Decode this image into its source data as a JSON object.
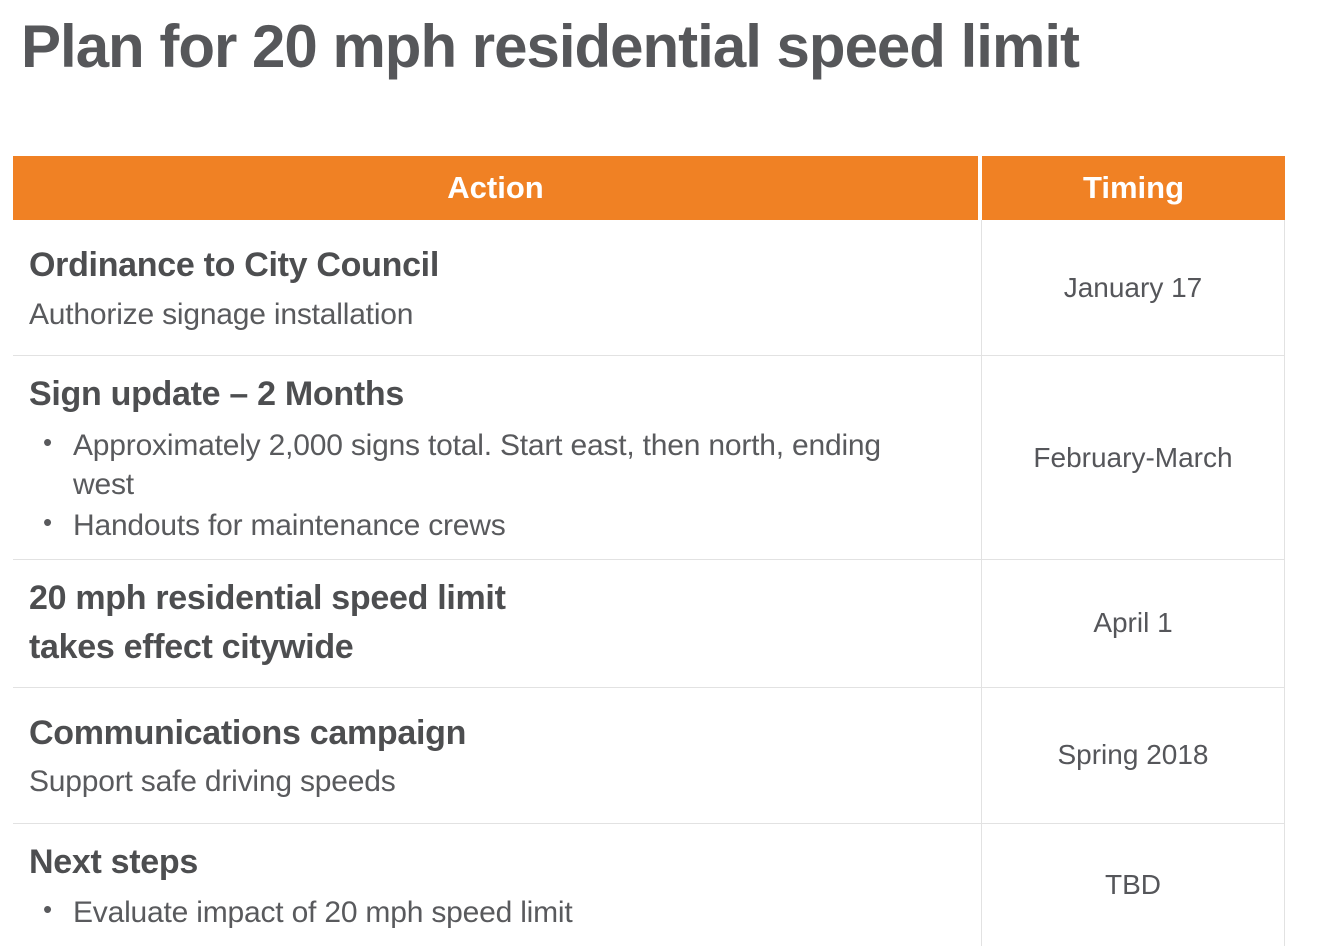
{
  "title": "Plan for 20 mph residential speed limit",
  "colors": {
    "header_bg": "#F08124",
    "header_text": "#FFFFFF",
    "title_text": "#56575A",
    "heading_text": "#4D4E50",
    "body_text": "#595A5D",
    "timing_text": "#55565A",
    "row_border": "#E2E2E2"
  },
  "bullet_char": "•",
  "table": {
    "headers": [
      {
        "label": "Action"
      },
      {
        "label": "Timing"
      }
    ],
    "rows": [
      {
        "heading": "Ordinance to City Council",
        "heading2": "",
        "sub": "Authorize signage installation",
        "bullets": [],
        "timing": "January 17"
      },
      {
        "heading": "Sign update – 2 Months",
        "heading2": "",
        "sub": "",
        "bullets": [
          "Approximately 2,000 signs total. Start east, then north, ending west",
          "Handouts for maintenance crews"
        ],
        "timing": "February-March"
      },
      {
        "heading": "20 mph residential speed limit",
        "heading2": "takes effect citywide",
        "sub": "",
        "bullets": [],
        "timing": "April 1"
      },
      {
        "heading": "Communications campaign",
        "heading2": "",
        "sub": "Support safe driving speeds",
        "bullets": [],
        "timing": "Spring 2018"
      },
      {
        "heading": "Next steps",
        "heading2": "",
        "sub": "",
        "bullets": [
          "Evaluate impact of 20 mph speed limit"
        ],
        "timing": "TBD"
      }
    ]
  }
}
